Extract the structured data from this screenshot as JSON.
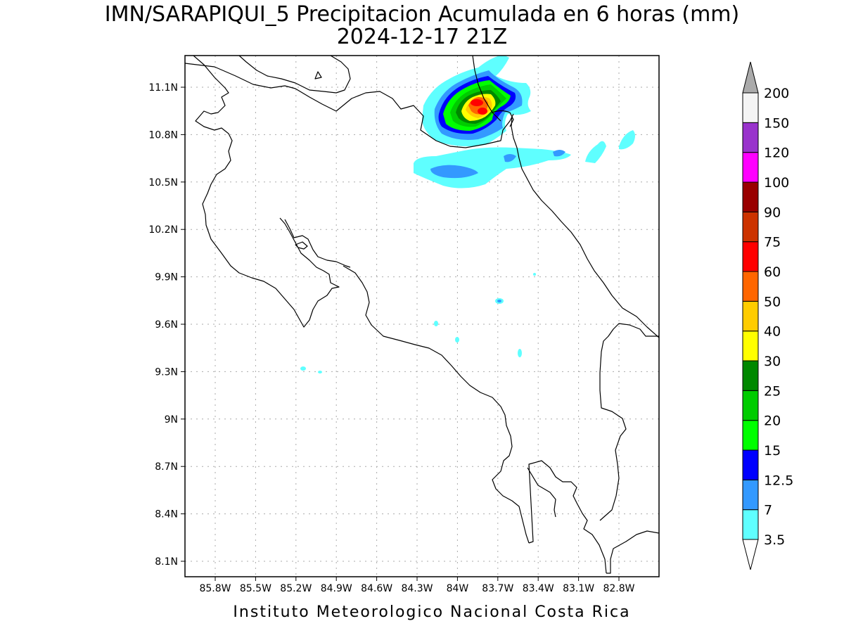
{
  "title": {
    "line1": "IMN/SARAPIQUI_5 Precipitacion Acumulada en 6 horas (mm)",
    "line2": "2024-12-17 21Z"
  },
  "footer": "Instituto Meteorologico Nacional Costa Rica",
  "map": {
    "lon_ticks": [
      "85.8W",
      "85.5W",
      "85.2W",
      "84.9W",
      "84.6W",
      "84.3W",
      "84W",
      "83.7W",
      "83.4W",
      "83.1W",
      "82.8W"
    ],
    "lat_ticks": [
      "11.1N",
      "10.8N",
      "10.5N",
      "10.2N",
      "9.9N",
      "9.6N",
      "9.3N",
      "9N",
      "8.7N",
      "8.4N",
      "8.1N"
    ],
    "grid": true
  },
  "colorbar": {
    "levels": [
      "3.5",
      "7",
      "12.5",
      "15",
      "20",
      "25",
      "30",
      "40",
      "50",
      "60",
      "75",
      "90",
      "100",
      "120",
      "150",
      "200"
    ],
    "colors": [
      "#5fffff",
      "#3399ff",
      "#0000ff",
      "#00ff00",
      "#00cc00",
      "#008800",
      "#ffff00",
      "#ffcc00",
      "#ff6600",
      "#ff0000",
      "#cc3300",
      "#990000",
      "#ff00ff",
      "#9933cc",
      "#f4f4f4",
      "#aaaaaa"
    ]
  }
}
